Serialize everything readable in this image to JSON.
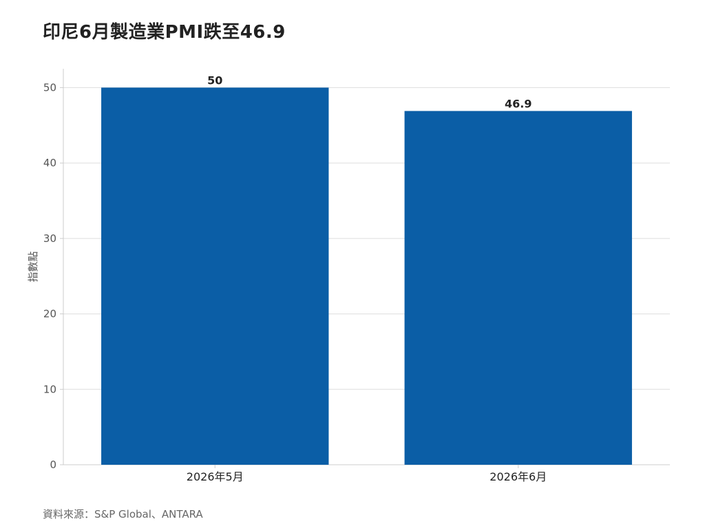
{
  "chart_data": {
    "type": "bar",
    "title": "印尼6月製造業PMI跌至46.9",
    "xlabel": "",
    "ylabel": "指數點",
    "categories": [
      "2026年5月",
      "2026年6月"
    ],
    "values": [
      50,
      46.9
    ],
    "data_labels": [
      "50",
      "46.9"
    ],
    "ylim": [
      0,
      52.5
    ],
    "yticks": [
      0,
      10,
      20,
      30,
      40,
      50
    ],
    "grid": true,
    "legend": "none",
    "bar_color": "#0b5ea6",
    "source": "資料來源：S&P Global、ANTARA"
  }
}
